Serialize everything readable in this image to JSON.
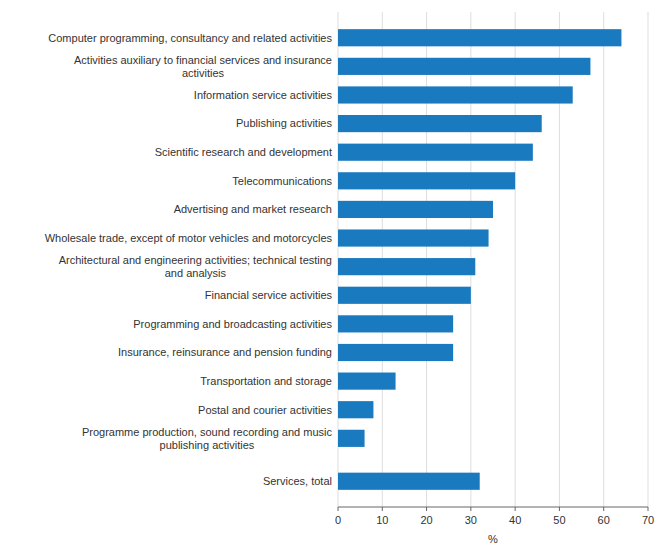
{
  "chart_data": {
    "type": "bar",
    "orientation": "horizontal",
    "categories": [
      "Computer programming, consultancy and related activities",
      "Activities auxiliary to financial services and insurance\nactivities",
      "Information service activities",
      "Publishing activities",
      "Scientific research and development",
      "Telecommunications",
      "Advertising and market research",
      "Wholesale trade, except of motor vehicles and motorcycles",
      "Architectural and engineering activities; technical testing\nand analysis",
      "Financial service activities",
      "Programming and broadcasting activities",
      "Insurance, reinsurance and pension funding",
      "Transportation and storage",
      "Postal and courier activities",
      "Programme production, sound recording and music\npublishing activities",
      "Services, total"
    ],
    "values": [
      64,
      57,
      53,
      46,
      44,
      40,
      35,
      34,
      31,
      30,
      26,
      26,
      13,
      8,
      6,
      32
    ],
    "color": "#1a7abf",
    "xlabel": "%",
    "xlim": [
      0,
      70
    ],
    "xticks": [
      0,
      10,
      20,
      30,
      40,
      50,
      60,
      70
    ],
    "grid": true
  }
}
